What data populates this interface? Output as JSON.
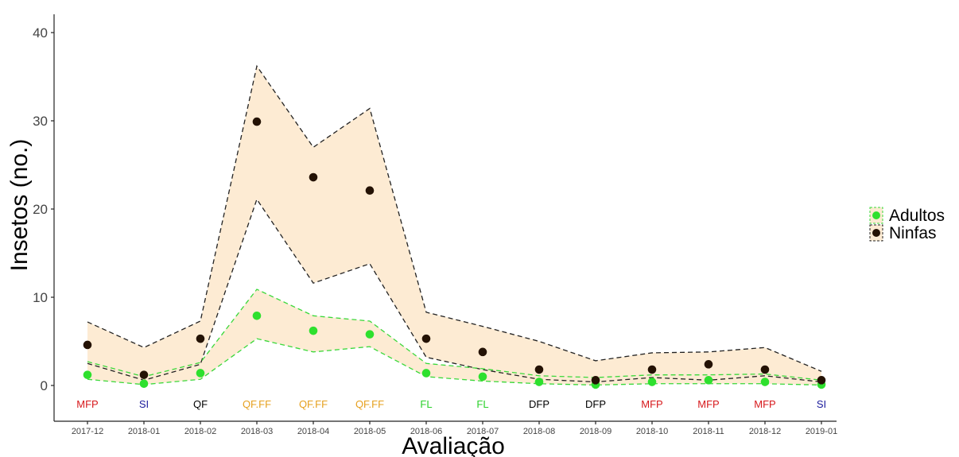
{
  "chart_data": {
    "type": "line",
    "xlabel": "Avaliação",
    "ylabel": "Insetos (no.)",
    "ylim": [
      -4,
      42
    ],
    "yticks": [
      0,
      10,
      20,
      30,
      40
    ],
    "grid": false,
    "legend_position": "right",
    "categories": [
      "2017-12",
      "2018-01",
      "2018-02",
      "2018-03",
      "2018-04",
      "2018-05",
      "2018-06",
      "2018-07",
      "2018-08",
      "2018-09",
      "2018-10",
      "2018-11",
      "2018-12",
      "2019-01"
    ],
    "phenology": [
      {
        "label": "MFP",
        "color": "#d7191c"
      },
      {
        "label": "SI",
        "color": "#1a1a9c"
      },
      {
        "label": "QF",
        "color": "#000000"
      },
      {
        "label": "QF.FF",
        "color": "#e6a01e"
      },
      {
        "label": "QF.FF",
        "color": "#e6a01e"
      },
      {
        "label": "QF.FF",
        "color": "#e6a01e"
      },
      {
        "label": "FL",
        "color": "#2bd12b"
      },
      {
        "label": "FL",
        "color": "#2bd12b"
      },
      {
        "label": "DFP",
        "color": "#000000"
      },
      {
        "label": "DFP",
        "color": "#000000"
      },
      {
        "label": "MFP",
        "color": "#d7191c"
      },
      {
        "label": "MFP",
        "color": "#d7191c"
      },
      {
        "label": "MFP",
        "color": "#d7191c"
      },
      {
        "label": "SI",
        "color": "#1a1a9c"
      }
    ],
    "series": [
      {
        "name": "Ninfas",
        "point_color": "#241204",
        "line_color": "#222222",
        "fill_color": "#fdebd3",
        "values": [
          4.6,
          1.2,
          5.3,
          29.9,
          23.6,
          22.1,
          5.3,
          3.8,
          1.8,
          0.6,
          1.8,
          2.4,
          1.8,
          0.6
        ],
        "upper": [
          7.2,
          4.3,
          7.3,
          36.2,
          27.0,
          31.4,
          8.3,
          6.7,
          5.0,
          2.8,
          3.7,
          3.8,
          4.3,
          1.6
        ],
        "lower": [
          2.5,
          0.6,
          2.4,
          21.1,
          11.6,
          13.8,
          3.2,
          1.8,
          0.7,
          0.4,
          0.9,
          0.6,
          1.1,
          0.4
        ]
      },
      {
        "name": "Adultos",
        "point_color": "#2ee02e",
        "line_color": "#3ad83a",
        "fill_color": "#fdebd3",
        "values": [
          1.2,
          0.2,
          1.4,
          7.9,
          6.2,
          5.8,
          1.4,
          1.0,
          0.4,
          0.1,
          0.4,
          0.6,
          0.4,
          0.1
        ],
        "upper": [
          2.7,
          1.0,
          2.6,
          10.9,
          7.9,
          7.3,
          2.5,
          1.9,
          1.1,
          0.9,
          1.2,
          1.2,
          1.3,
          0.6
        ],
        "lower": [
          0.7,
          0.1,
          0.7,
          5.3,
          3.8,
          4.4,
          1.0,
          0.5,
          0.2,
          0.05,
          0.2,
          0.2,
          0.2,
          0.05
        ]
      }
    ]
  }
}
